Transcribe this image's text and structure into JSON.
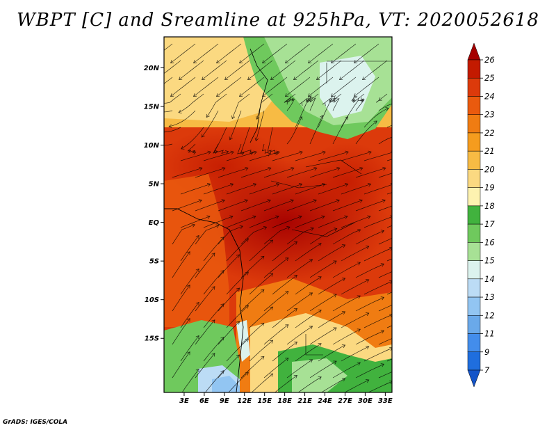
{
  "title": "WBPT [C] and Sreamline at 925hPa, VT: 2020052618",
  "credit": "GrADS: IGES/COLA",
  "map": {
    "lon_range": [
      0,
      34
    ],
    "lat_range": [
      -22,
      24
    ],
    "lat_ticks": [
      {
        "value": 20,
        "label": "20N"
      },
      {
        "value": 15,
        "label": "15N"
      },
      {
        "value": 10,
        "label": "10N"
      },
      {
        "value": 5,
        "label": "5N"
      },
      {
        "value": 0,
        "label": "EQ"
      },
      {
        "value": -5,
        "label": "5S"
      },
      {
        "value": -10,
        "label": "10S"
      },
      {
        "value": -15,
        "label": "15S"
      }
    ],
    "lon_ticks": [
      {
        "value": 3,
        "label": "3E"
      },
      {
        "value": 6,
        "label": "6E"
      },
      {
        "value": 9,
        "label": "9E"
      },
      {
        "value": 12,
        "label": "12E"
      },
      {
        "value": 15,
        "label": "15E"
      },
      {
        "value": 18,
        "label": "18E"
      },
      {
        "value": 21,
        "label": "21E"
      },
      {
        "value": 24,
        "label": "24E"
      },
      {
        "value": 27,
        "label": "27E"
      },
      {
        "value": 30,
        "label": "30E"
      },
      {
        "value": 33,
        "label": "33E"
      }
    ]
  },
  "colorbar": {
    "levels": [
      "26",
      "25",
      "24",
      "23",
      "22",
      "21",
      "20",
      "19",
      "18",
      "17",
      "16",
      "15",
      "14",
      "13",
      "12",
      "11",
      "9",
      "7"
    ],
    "colors": [
      "#a50000",
      "#c31a00",
      "#dc3a0b",
      "#ea5a0e",
      "#f07c12",
      "#f59c1e",
      "#f7bb44",
      "#fbd981",
      "#fdf2b0",
      "#41b23e",
      "#6fc95d",
      "#a7e195",
      "#dcf3ee",
      "#bcdcf5",
      "#92c5f2",
      "#6aa9ea",
      "#438deb",
      "#1f6ede",
      "#1454c8"
    ]
  }
}
